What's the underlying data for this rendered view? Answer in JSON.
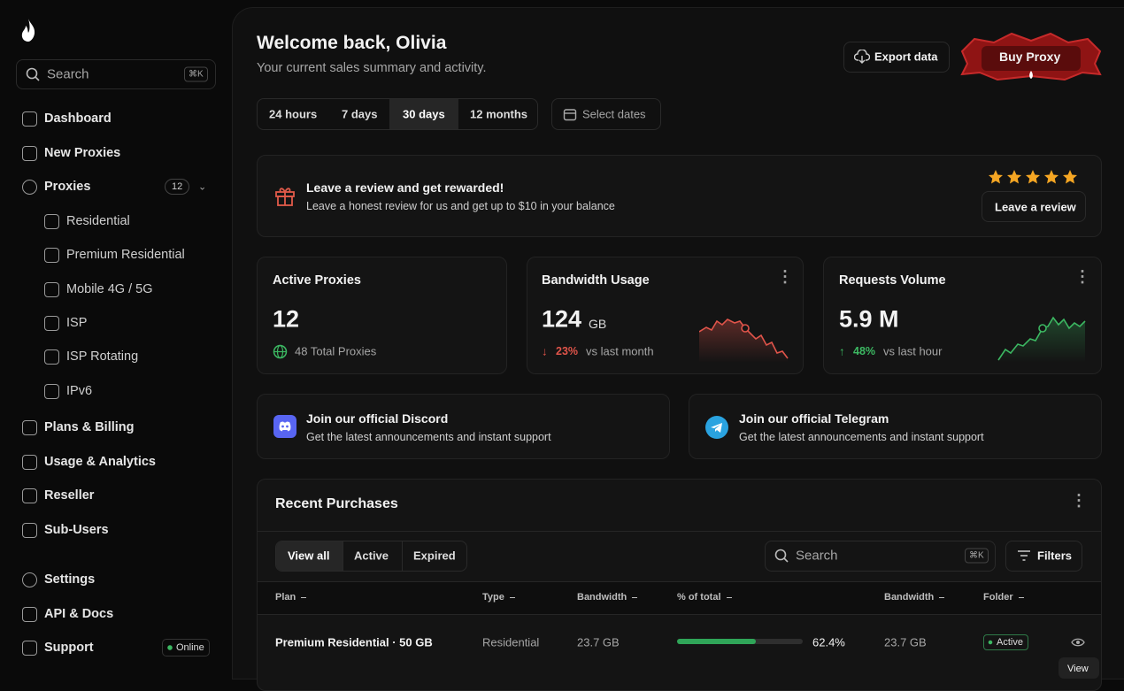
{
  "sidebar": {
    "search": {
      "placeholder": "Search",
      "shortcut": "⌘K"
    },
    "nav": [
      {
        "label": "Dashboard"
      },
      {
        "label": "New Proxies"
      },
      {
        "label": "Proxies",
        "badge": "12"
      }
    ],
    "proxy_sub": [
      "Residential",
      "Premium Residential",
      "Mobile 4G / 5G",
      "ISP",
      "ISP Rotating",
      "IPv6"
    ],
    "nav2": [
      "Plans & Billing",
      "Usage & Analytics",
      "Reseller",
      "Sub-Users"
    ],
    "footer": [
      "Settings",
      "API & Docs",
      "Support"
    ],
    "support_status": "Online"
  },
  "header": {
    "title": "Welcome back, Olivia",
    "subtitle": "Your current sales summary and activity.",
    "export": "Export data",
    "buy": "Buy Proxy"
  },
  "ranges": {
    "options": [
      "24 hours",
      "7 days",
      "30 days",
      "12 months"
    ],
    "select": "Select dates"
  },
  "review": {
    "title": "Leave a review and get rewarded!",
    "text": "Leave a honest review for us and get up to $10 in your balance",
    "button": "Leave a review"
  },
  "stats": [
    {
      "title": "Active Proxies",
      "value": "12",
      "note": "48 Total Proxies"
    },
    {
      "title": "Bandwidth Usage",
      "value": "124",
      "unit": "GB",
      "change": "23%",
      "note": "vs last month"
    },
    {
      "title": "Requests Volume",
      "value": "5.9 M",
      "change": "48%",
      "note": "vs last hour"
    }
  ],
  "community": [
    {
      "title": "Join our official Discord",
      "text": "Get the latest announcements and instant support"
    },
    {
      "title": "Join our official Telegram",
      "text": "Get the latest announcements and instant support"
    }
  ],
  "purchases": {
    "title": "Recent Purchases",
    "tabs": [
      "View all",
      "Active",
      "Expired"
    ],
    "search": "Search",
    "shortcut": "⌘K",
    "filters": "Filters",
    "columns": [
      "Plan",
      "Type",
      "Bandwidth",
      "% of total",
      "Bandwidth",
      "Folder"
    ],
    "rows": [
      {
        "plan": "Premium Residential · 50 GB",
        "type": "Residential",
        "bandwidth": "23.7 GB",
        "percent": {
          "value": 62.4,
          "label": "62.4%"
        },
        "bandwidth2": "23.7 GB",
        "folder": "Active"
      }
    ],
    "tooltip": "View"
  }
}
